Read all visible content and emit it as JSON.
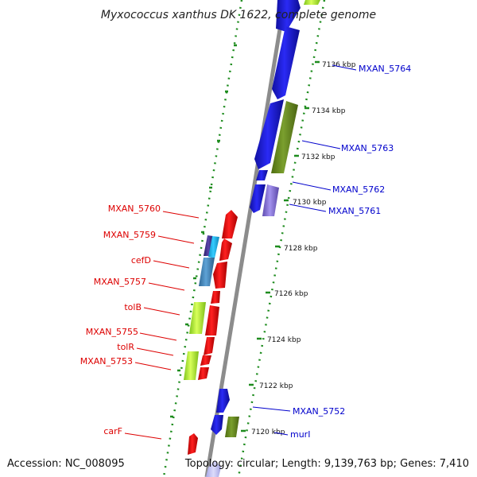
{
  "title": "Myxococcus xanthus DK 1622, complete genome",
  "accession": "Accession: NC_008095",
  "summary": "Topology: circular; Length: 9,139,763 bp; Genes: 7,410",
  "colors": {
    "backbone": "#8c8c8c",
    "dotted_track": "#1e8c1e",
    "forward_label": "#0000cc",
    "reverse_label": "#dd0000"
  },
  "ticks": [
    "7136 kbp",
    "7134 kbp",
    "7132 kbp",
    "7130 kbp",
    "7128 kbp",
    "7126 kbp",
    "7124 kbp",
    "7122 kbp",
    "7120 kbp"
  ],
  "forward_labels": [
    "MXAN_5764",
    "MXAN_5763",
    "MXAN_5762",
    "MXAN_5761",
    "MXAN_5752",
    "murI"
  ],
  "reverse_labels": [
    "MXAN_5760",
    "MXAN_5759",
    "cefD",
    "MXAN_5757",
    "tolB",
    "MXAN_5755",
    "tolR",
    "MXAN_5753",
    "carF"
  ]
}
